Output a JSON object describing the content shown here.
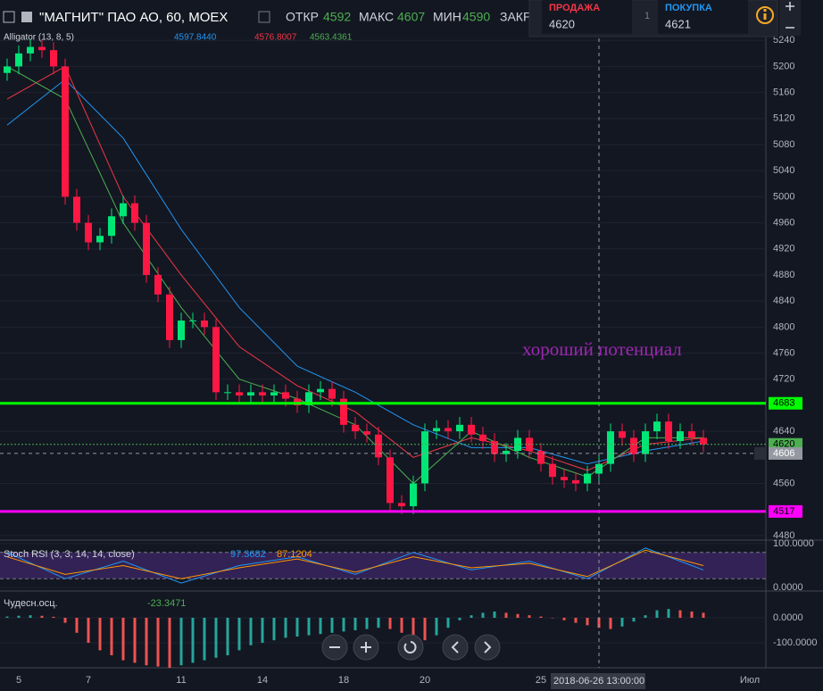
{
  "header": {
    "symbol": "\"МАГНИТ\" ПАО АО, 60, MOEX",
    "open_label": "ОТКР",
    "open": 4592,
    "high_label": "МАКС",
    "high": 4607,
    "low_label": "МИН",
    "low": 4590,
    "close_label": "ЗАКР"
  },
  "trade": {
    "sell_label": "ПРОДАЖА",
    "sell": 4620,
    "qty": 1,
    "buy_label": "ПОКУПКА",
    "buy": 4621
  },
  "chart_data": [
    {
      "type": "candlestick",
      "annotation": "хороший потенциал",
      "crosshair_label": "2018-06-26 13:00:00",
      "up_color": "#00e676",
      "down_color": "#ff1744",
      "categories": [
        null,
        "5",
        null,
        null,
        null,
        null,
        null,
        "7",
        null,
        null,
        null,
        null,
        null,
        null,
        null,
        "11",
        null,
        null,
        null,
        null,
        null,
        null,
        "14",
        null,
        null,
        null,
        null,
        null,
        null,
        "18",
        null,
        null,
        null,
        null,
        null,
        null,
        "20",
        null,
        null,
        null,
        null,
        null,
        null,
        null,
        null,
        null,
        "25",
        null,
        null,
        null,
        null,
        null,
        null,
        null,
        null,
        null,
        null,
        null,
        null,
        null,
        null,
        null,
        null,
        null,
        "Июл"
      ],
      "open": [
        5190,
        5200,
        5220,
        5230,
        5225,
        5200,
        5000,
        4960,
        4930,
        4940,
        4970,
        4990,
        4960,
        4880,
        4850,
        4780,
        4810,
        4810,
        4800,
        4700,
        4700,
        4695,
        4700,
        4695,
        4700,
        4690,
        4680,
        4700,
        4705,
        4690,
        4650,
        4640,
        4635,
        4600,
        4530,
        4525,
        4560,
        4640,
        4645,
        4640,
        4650,
        4635,
        4625,
        4605,
        4610,
        4630,
        4610,
        4590,
        4570,
        4565,
        4560,
        4575,
        4590,
        4640,
        4630,
        4605,
        4640,
        4655,
        4625,
        4640,
        4630,
        null,
        null,
        null,
        null
      ],
      "high": [
        5212,
        5232,
        5242,
        5242,
        5237,
        5212,
        5012,
        4972,
        4952,
        4982,
        5002,
        5002,
        4972,
        4892,
        4862,
        4822,
        4822,
        4822,
        4812,
        4712,
        4712,
        4712,
        4712,
        4712,
        4712,
        4702,
        4712,
        4717,
        4717,
        4702,
        4662,
        4652,
        4647,
        4612,
        4542,
        4572,
        4652,
        4657,
        4657,
        4662,
        4662,
        4647,
        4637,
        4622,
        4642,
        4642,
        4622,
        4602,
        4582,
        4577,
        4587,
        4602,
        4652,
        4652,
        4642,
        4652,
        4667,
        4667,
        4652,
        4652,
        4642,
        null,
        null,
        null,
        null
      ],
      "low": [
        5178,
        5188,
        5208,
        5213,
        5188,
        4988,
        4948,
        4918,
        4918,
        4928,
        4958,
        4948,
        4868,
        4838,
        4768,
        4768,
        4798,
        4788,
        4688,
        4688,
        4683,
        4683,
        4683,
        4683,
        4678,
        4668,
        4668,
        4688,
        4678,
        4638,
        4628,
        4623,
        4588,
        4518,
        4513,
        4513,
        4548,
        4628,
        4628,
        4628,
        4623,
        4613,
        4593,
        4593,
        4598,
        4598,
        4578,
        4558,
        4553,
        4548,
        4548,
        4563,
        4578,
        4618,
        4593,
        4593,
        4628,
        4613,
        4613,
        4618,
        4608,
        null,
        null,
        null,
        null
      ],
      "close": [
        5200,
        5220,
        5230,
        5225,
        5200,
        5000,
        4960,
        4930,
        4940,
        4970,
        4990,
        4960,
        4880,
        4850,
        4780,
        4810,
        4810,
        4800,
        4700,
        4700,
        4695,
        4700,
        4695,
        4700,
        4690,
        4680,
        4700,
        4705,
        4690,
        4650,
        4640,
        4635,
        4600,
        4530,
        4525,
        4560,
        4640,
        4645,
        4640,
        4650,
        4635,
        4625,
        4605,
        4610,
        4630,
        4610,
        4590,
        4570,
        4565,
        4560,
        4575,
        4590,
        4640,
        4630,
        4605,
        4640,
        4655,
        4625,
        4640,
        4630,
        4620,
        null,
        null,
        null,
        null
      ],
      "ylim": [
        4473,
        5254
      ],
      "yticks": [
        5240,
        5200,
        5160,
        5120,
        5080,
        5040,
        5000,
        4960,
        4920,
        4880,
        4840,
        4800,
        4760,
        4720,
        4640,
        4560,
        4480
      ],
      "indicator": {
        "name": "Alligator (13, 8, 5)",
        "x": [
          0,
          5,
          10,
          15,
          20,
          25,
          30,
          35,
          40,
          45,
          50,
          55,
          60
        ],
        "series": [
          {
            "color": "#2196f3",
            "legend": "4597.8440",
            "values": [
              5110,
              5180,
              5090,
              4950,
              4830,
              4740,
              4700,
              4650,
              4615,
              4615,
              4590,
              4610,
              4625
            ]
          },
          {
            "color": "#f23645",
            "legend": "4576.8007",
            "values": [
              5150,
              5200,
              5000,
              4880,
              4770,
              4710,
              4670,
              4600,
              4630,
              4610,
              4580,
              4620,
              4630
            ]
          },
          {
            "color": "#4caf50",
            "legend": "4563.4361",
            "values": [
              5200,
              5150,
              4960,
              4830,
              4720,
              4690,
              4650,
              4560,
              4640,
              4600,
              4570,
              4630,
              4630
            ]
          }
        ]
      },
      "levels": [
        {
          "value": 4683,
          "color": "#00ff00",
          "style": "solid"
        },
        {
          "value": 4517,
          "color": "#ff00ff",
          "style": "solid"
        },
        {
          "value": 4620,
          "color": "#4caf50",
          "style": "dotted"
        },
        {
          "value": 4606,
          "color": "#9598a1",
          "style": "dashed"
        }
      ]
    },
    {
      "type": "line",
      "title": "Stoch RSI (3, 3, 14, 14, close)",
      "x": [
        0,
        5,
        10,
        15,
        20,
        25,
        30,
        35,
        40,
        45,
        50,
        55,
        60
      ],
      "band": [
        20,
        80
      ],
      "series": [
        {
          "color": "#2196f3",
          "legend": "97.3682",
          "values": [
            80,
            20,
            60,
            10,
            50,
            70,
            30,
            80,
            40,
            60,
            20,
            90,
            40
          ]
        },
        {
          "color": "#ff9800",
          "legend": "87.1204",
          "values": [
            70,
            30,
            50,
            20,
            45,
            65,
            35,
            70,
            45,
            55,
            25,
            85,
            50
          ]
        }
      ],
      "ylim": [
        -8,
        108
      ],
      "yticks": [
        {
          "value": 100,
          "label": "100.0000"
        },
        {
          "value": 0,
          "label": "0.0000"
        }
      ]
    },
    {
      "type": "bar",
      "title": "Чудесн.осц.",
      "legend": "-23.3471",
      "up_color": "#26a69a",
      "down_color": "#ef5350",
      "values": [
        5,
        8,
        10,
        8,
        4,
        -20,
        -60,
        -100,
        -130,
        -150,
        -170,
        -180,
        -190,
        -195,
        -200,
        -190,
        -180,
        -170,
        -160,
        -150,
        -130,
        -110,
        -100,
        -90,
        -80,
        -75,
        -70,
        -65,
        -60,
        -55,
        -50,
        -45,
        -40,
        -45,
        -60,
        -80,
        -90,
        -70,
        -40,
        -10,
        10,
        20,
        25,
        20,
        15,
        10,
        5,
        0,
        -10,
        -20,
        -30,
        -40,
        -45,
        -35,
        -15,
        10,
        30,
        35,
        30,
        25,
        20,
        null,
        null,
        null,
        null
      ],
      "ylim": [
        -200,
        107
      ],
      "yticks": [
        {
          "value": 0,
          "label": "0.0000"
        },
        {
          "value": -100,
          "label": "-100.0000"
        }
      ]
    }
  ]
}
